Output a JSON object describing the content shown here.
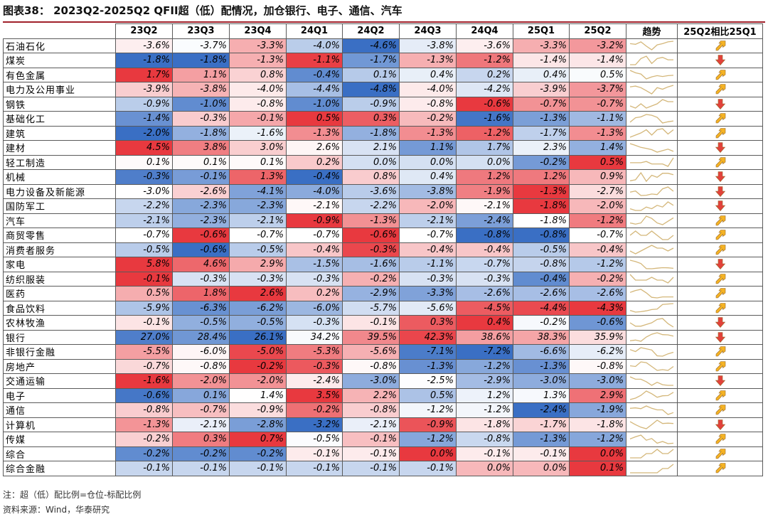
{
  "title": "图表38： 2023Q2-2025Q2 QFII超（低）配情况，加仓银行、电子、通信、汽车",
  "columns": [
    "23Q2",
    "23Q3",
    "23Q4",
    "24Q1",
    "24Q2",
    "24Q3",
    "24Q4",
    "25Q1",
    "25Q2"
  ],
  "trend_header": "趋势",
  "change_header": "25Q2相比25Q1",
  "colors": {
    "positive": "#e8393f",
    "negative": "#3a6fc4",
    "neutral": "#ffffff",
    "sparkline": "#d4b77a",
    "arrow_up": "#f5b324",
    "arrow_down": "#e2413b",
    "title_rule": "#a0202a"
  },
  "rows": [
    {
      "name": "石油石化",
      "v": [
        -3.6,
        -3.7,
        -3.3,
        -4.0,
        -4.6,
        -3.8,
        -3.6,
        -3.3,
        -3.2
      ],
      "t": [
        "-3.6%",
        "-3.7%",
        "-3.3%",
        "-4.0%",
        "-4.6%",
        "-3.8%",
        "-3.6%",
        "-3.3%",
        "-3.2%"
      ],
      "dir": "up"
    },
    {
      "name": "煤炭",
      "v": [
        -1.8,
        -1.8,
        -1.3,
        -1.1,
        -1.7,
        -1.3,
        -1.2,
        -1.4,
        -1.4
      ],
      "t": [
        "-1.8%",
        "-1.8%",
        "-1.3%",
        "-1.1%",
        "-1.7%",
        "-1.3%",
        "-1.2%",
        "-1.4%",
        "-1.4%"
      ],
      "dir": "down"
    },
    {
      "name": "有色金属",
      "v": [
        1.7,
        1.1,
        0.8,
        -0.4,
        0.1,
        0.4,
        0.2,
        0.4,
        0.5
      ],
      "t": [
        "1.7%",
        "1.1%",
        "0.8%",
        "-0.4%",
        "0.1%",
        "0.4%",
        "0.2%",
        "0.4%",
        "0.5%"
      ],
      "dir": "up"
    },
    {
      "name": "电力及公用事业",
      "v": [
        -3.9,
        -3.8,
        -4.0,
        -4.4,
        -4.8,
        -4.0,
        -4.2,
        -3.9,
        -3.7
      ],
      "t": [
        "-3.9%",
        "-3.8%",
        "-4.0%",
        "-4.4%",
        "-4.8%",
        "-4.0%",
        "-4.2%",
        "-3.9%",
        "-3.7%"
      ],
      "dir": "up"
    },
    {
      "name": "钢铁",
      "v": [
        -0.9,
        -1.0,
        -0.8,
        -1.0,
        -0.9,
        -0.8,
        -0.6,
        -0.7,
        -0.7
      ],
      "t": [
        "-0.9%",
        "-1.0%",
        "-0.8%",
        "-1.0%",
        "-0.9%",
        "-0.8%",
        "-0.6%",
        "-0.7%",
        "-0.7%"
      ],
      "dir": "down"
    },
    {
      "name": "基础化工",
      "v": [
        -1.4,
        -0.3,
        -0.1,
        0.5,
        0.3,
        -0.2,
        -1.6,
        -1.3,
        -1.1
      ],
      "t": [
        "-1.4%",
        "-0.3%",
        "-0.1%",
        "0.5%",
        "0.3%",
        "-0.2%",
        "-1.6%",
        "-1.3%",
        "-1.1%"
      ],
      "dir": "up"
    },
    {
      "name": "建筑",
      "v": [
        -2.0,
        -1.8,
        -1.6,
        -1.3,
        -1.8,
        -1.3,
        -1.2,
        -1.7,
        -1.3
      ],
      "t": [
        "-2.0%",
        "-1.8%",
        "-1.6%",
        "-1.3%",
        "-1.8%",
        "-1.3%",
        "-1.2%",
        "-1.7%",
        "-1.3%"
      ],
      "dir": "up"
    },
    {
      "name": "建材",
      "v": [
        4.5,
        3.8,
        3.0,
        2.6,
        2.1,
        1.1,
        1.7,
        2.3,
        1.4
      ],
      "t": [
        "4.5%",
        "3.8%",
        "3.0%",
        "2.6%",
        "2.1%",
        "1.1%",
        "1.7%",
        "2.3%",
        "1.4%"
      ],
      "dir": "down"
    },
    {
      "name": "轻工制造",
      "v": [
        0.1,
        0.1,
        0.1,
        0.2,
        0.0,
        0.0,
        0.0,
        -0.2,
        0.5
      ],
      "t": [
        "0.1%",
        "0.1%",
        "0.1%",
        "0.2%",
        "0.0%",
        "0.0%",
        "0.0%",
        "-0.2%",
        "0.5%"
      ],
      "dir": "up"
    },
    {
      "name": "机械",
      "v": [
        -0.3,
        -0.1,
        1.3,
        -0.4,
        0.8,
        0.4,
        1.2,
        1.2,
        0.9
      ],
      "t": [
        "-0.3%",
        "-0.1%",
        "1.3%",
        "-0.4%",
        "0.8%",
        "0.4%",
        "1.2%",
        "1.2%",
        "0.9%"
      ],
      "dir": "down"
    },
    {
      "name": "电力设备及新能源",
      "v": [
        -3.0,
        -2.6,
        -4.1,
        -4.0,
        -3.6,
        -3.8,
        -1.9,
        -1.3,
        -2.7
      ],
      "t": [
        "-3.0%",
        "-2.6%",
        "-4.1%",
        "-4.0%",
        "-3.6%",
        "-3.8%",
        "-1.9%",
        "-1.3%",
        "-2.7%"
      ],
      "dir": "down"
    },
    {
      "name": "国防军工",
      "v": [
        -2.2,
        -2.3,
        -2.3,
        -2.1,
        -2.2,
        -2.0,
        -2.1,
        -1.8,
        -2.0
      ],
      "t": [
        "-2.2%",
        "-2.3%",
        "-2.3%",
        "-2.1%",
        "-2.2%",
        "-2.0%",
        "-2.1%",
        "-1.8%",
        "-2.0%"
      ],
      "dir": "down"
    },
    {
      "name": "汽车",
      "v": [
        -2.1,
        -2.3,
        -2.1,
        -0.9,
        -1.3,
        -2.1,
        -2.4,
        -1.8,
        -1.2
      ],
      "t": [
        "-2.1%",
        "-2.3%",
        "-2.1%",
        "-0.9%",
        "-1.3%",
        "-2.1%",
        "-2.4%",
        "-1.8%",
        "-1.2%"
      ],
      "dir": "up"
    },
    {
      "name": "商贸零售",
      "v": [
        -0.7,
        -0.6,
        -0.7,
        -0.7,
        -0.6,
        -0.7,
        -0.8,
        -0.8,
        -0.7
      ],
      "t": [
        "-0.7%",
        "-0.6%",
        "-0.7%",
        "-0.7%",
        "-0.6%",
        "-0.7%",
        "-0.8%",
        "-0.8%",
        "-0.7%"
      ],
      "dir": "up"
    },
    {
      "name": "消费者服务",
      "v": [
        -0.5,
        -0.6,
        -0.5,
        -0.4,
        -0.3,
        -0.4,
        -0.4,
        -0.5,
        -0.4
      ],
      "t": [
        "-0.5%",
        "-0.6%",
        "-0.5%",
        "-0.4%",
        "-0.3%",
        "-0.4%",
        "-0.4%",
        "-0.5%",
        "-0.4%"
      ],
      "dir": "up"
    },
    {
      "name": "家电",
      "v": [
        5.8,
        4.6,
        2.9,
        -1.5,
        -1.6,
        -1.1,
        -0.7,
        -0.8,
        -1.2
      ],
      "t": [
        "5.8%",
        "4.6%",
        "2.9%",
        "-1.5%",
        "-1.6%",
        "-1.1%",
        "-0.7%",
        "-0.8%",
        "-1.2%"
      ],
      "dir": "down"
    },
    {
      "name": "纺织服装",
      "v": [
        -0.1,
        -0.3,
        -0.3,
        -0.3,
        -0.2,
        -0.3,
        -0.3,
        -0.4,
        -0.2
      ],
      "t": [
        "-0.1%",
        "-0.3%",
        "-0.3%",
        "-0.3%",
        "-0.2%",
        "-0.3%",
        "-0.3%",
        "-0.4%",
        "-0.2%"
      ],
      "dir": "up"
    },
    {
      "name": "医药",
      "v": [
        0.5,
        1.8,
        2.6,
        0.2,
        -2.9,
        -3.3,
        -2.6,
        -2.6,
        -2.6
      ],
      "t": [
        "0.5%",
        "1.8%",
        "2.6%",
        "0.2%",
        "-2.9%",
        "-3.3%",
        "-2.6%",
        "-2.6%",
        "-2.6%"
      ],
      "dir": "up"
    },
    {
      "name": "食品饮料",
      "v": [
        -5.9,
        -6.3,
        -6.2,
        -6.0,
        -5.7,
        -5.6,
        -4.5,
        -4.4,
        -4.3
      ],
      "t": [
        "-5.9%",
        "-6.3%",
        "-6.2%",
        "-6.0%",
        "-5.7%",
        "-5.6%",
        "-4.5%",
        "-4.4%",
        "-4.3%"
      ],
      "dir": "up"
    },
    {
      "name": "农林牧渔",
      "v": [
        -0.1,
        -0.5,
        -0.5,
        -0.3,
        -0.1,
        0.3,
        0.4,
        -0.2,
        -0.6
      ],
      "t": [
        "-0.1%",
        "-0.5%",
        "-0.5%",
        "-0.3%",
        "-0.1%",
        "0.3%",
        "0.4%",
        "-0.2%",
        "-0.6%"
      ],
      "dir": "down"
    },
    {
      "name": "银行",
      "v": [
        27.0,
        28.4,
        26.1,
        34.2,
        39.5,
        42.3,
        38.6,
        38.3,
        35.9
      ],
      "t": [
        "27.0%",
        "28.4%",
        "26.1%",
        "34.2%",
        "39.5%",
        "42.3%",
        "38.6%",
        "38.3%",
        "35.9%"
      ],
      "dir": "down"
    },
    {
      "name": "非银行金融",
      "v": [
        -5.5,
        -6.0,
        -5.0,
        -5.3,
        -5.6,
        -7.1,
        -7.2,
        -6.6,
        -6.2
      ],
      "t": [
        "-5.5%",
        "-6.0%",
        "-5.0%",
        "-5.3%",
        "-5.6%",
        "-7.1%",
        "-7.2%",
        "-6.6%",
        "-6.2%"
      ],
      "dir": "up"
    },
    {
      "name": "房地产",
      "v": [
        -0.7,
        -0.8,
        -0.2,
        -0.3,
        -0.8,
        -1.3,
        -1.2,
        -1.3,
        -0.8
      ],
      "t": [
        "-0.7%",
        "-0.8%",
        "-0.2%",
        "-0.3%",
        "-0.8%",
        "-1.3%",
        "-1.2%",
        "-1.3%",
        "-0.8%"
      ],
      "dir": "up"
    },
    {
      "name": "交通运输",
      "v": [
        -1.6,
        -2.0,
        -2.0,
        -2.4,
        -3.0,
        -2.5,
        -2.9,
        -3.0,
        -3.0
      ],
      "t": [
        "-1.6%",
        "-2.0%",
        "-2.0%",
        "-2.4%",
        "-3.0%",
        "-2.5%",
        "-2.9%",
        "-3.0%",
        "-3.0%"
      ],
      "dir": "down"
    },
    {
      "name": "电子",
      "v": [
        -0.6,
        0.1,
        1.4,
        3.5,
        2.2,
        0.5,
        1.2,
        1.3,
        2.9
      ],
      "t": [
        "-0.6%",
        "0.1%",
        "1.4%",
        "3.5%",
        "2.2%",
        "0.5%",
        "1.2%",
        "1.3%",
        "2.9%"
      ],
      "dir": "up"
    },
    {
      "name": "通信",
      "v": [
        -0.8,
        -0.7,
        -0.9,
        -0.2,
        -0.8,
        -1.2,
        -1.2,
        -2.4,
        -1.9
      ],
      "t": [
        "-0.8%",
        "-0.7%",
        "-0.9%",
        "-0.2%",
        "-0.8%",
        "-1.2%",
        "-1.2%",
        "-2.4%",
        "-1.9%"
      ],
      "dir": "up"
    },
    {
      "name": "计算机",
      "v": [
        -1.3,
        -2.1,
        -2.8,
        -3.2,
        -2.1,
        -0.9,
        -1.8,
        -1.7,
        -1.8
      ],
      "t": [
        "-1.3%",
        "-2.1%",
        "-2.8%",
        "-3.2%",
        "-2.1%",
        "-0.9%",
        "-1.8%",
        "-1.7%",
        "-1.8%"
      ],
      "dir": "down"
    },
    {
      "name": "传媒",
      "v": [
        -0.2,
        0.3,
        0.7,
        -0.5,
        -0.1,
        -1.2,
        -0.8,
        -1.3,
        -1.2
      ],
      "t": [
        "-0.2%",
        "0.3%",
        "0.7%",
        "-0.5%",
        "-0.1%",
        "-1.2%",
        "-0.8%",
        "-1.3%",
        "-1.2%"
      ],
      "dir": "up"
    },
    {
      "name": "综合",
      "v": [
        -0.2,
        -0.2,
        -0.2,
        -0.1,
        -0.1,
        0.0,
        -0.1,
        -0.1,
        0.0
      ],
      "t": [
        "-0.2%",
        "-0.2%",
        "-0.2%",
        "-0.1%",
        "-0.1%",
        "0.0%",
        "-0.1%",
        "-0.1%",
        "0.0%"
      ],
      "dir": "up"
    },
    {
      "name": "综合金融",
      "v": [
        -0.1,
        -0.1,
        -0.1,
        -0.1,
        -0.1,
        -0.1,
        0.0,
        0.0,
        0.1
      ],
      "t": [
        "-0.1%",
        "-0.1%",
        "-0.1%",
        "-0.1%",
        "-0.1%",
        "-0.1%",
        "0.0%",
        "0.0%",
        "0.1%"
      ],
      "dir": "up"
    }
  ],
  "footnotes": [
    "注：超（低）配比例=仓位-标配比例",
    "资料来源：Wind，华泰研究"
  ]
}
